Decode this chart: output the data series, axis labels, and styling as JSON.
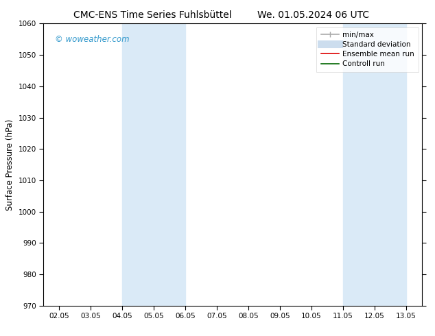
{
  "title_left": "CMC-ENS Time Series Fuhlsbüttel",
  "title_right": "We. 01.05.2024 06 UTC",
  "ylabel": "Surface Pressure (hPa)",
  "xlabel": "",
  "ylim": [
    970,
    1060
  ],
  "yticks": [
    970,
    980,
    990,
    1000,
    1010,
    1020,
    1030,
    1040,
    1050,
    1060
  ],
  "xtick_labels": [
    "02.05",
    "03.05",
    "04.05",
    "05.05",
    "06.05",
    "07.05",
    "08.05",
    "09.05",
    "10.05",
    "11.05",
    "12.05",
    "13.05"
  ],
  "xtick_positions": [
    0,
    1,
    2,
    3,
    4,
    5,
    6,
    7,
    8,
    9,
    10,
    11
  ],
  "xlim": [
    -0.5,
    11.5
  ],
  "shaded_bands": [
    {
      "x_start": 2,
      "x_end": 4,
      "color": "#daeaf7"
    },
    {
      "x_start": 9,
      "x_end": 11,
      "color": "#daeaf7"
    }
  ],
  "watermark_text": "© woweather.com",
  "watermark_color": "#3399cc",
  "legend_items": [
    {
      "label": "min/max",
      "color": "#aaaaaa",
      "lw": 1.2,
      "ls": "-",
      "type": "line_cap"
    },
    {
      "label": "Standard deviation",
      "color": "#ccddee",
      "lw": 8,
      "ls": "-",
      "type": "thick"
    },
    {
      "label": "Ensemble mean run",
      "color": "#dd0000",
      "lw": 1.2,
      "ls": "-",
      "type": "line"
    },
    {
      "label": "Controll run",
      "color": "#006600",
      "lw": 1.2,
      "ls": "-",
      "type": "line"
    }
  ],
  "background_color": "#ffffff",
  "plot_bg_color": "#ffffff",
  "title_fontsize": 10,
  "axis_fontsize": 8.5,
  "tick_fontsize": 7.5,
  "legend_fontsize": 7.5
}
